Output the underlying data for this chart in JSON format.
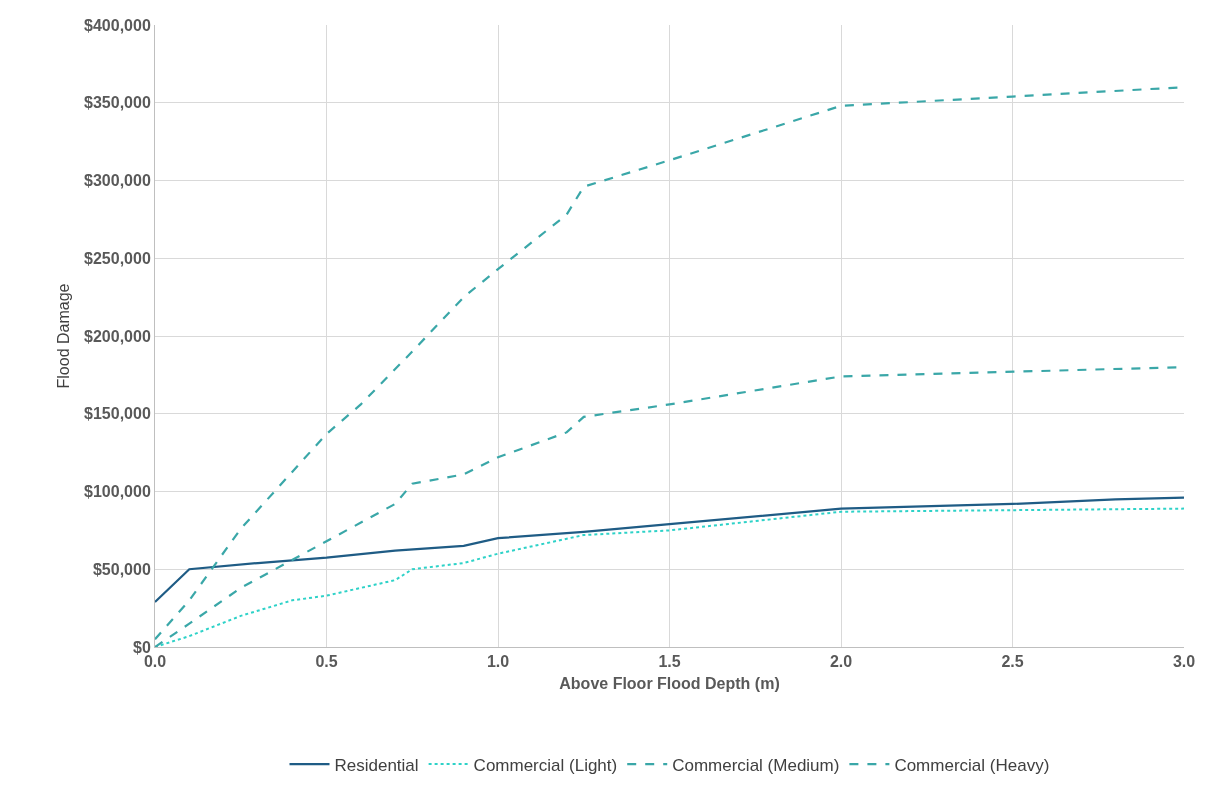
{
  "chart_data": {
    "type": "line",
    "xlabel": "Above Floor Flood Depth (m)",
    "ylabel": "Flood Damage",
    "xlim": [
      0,
      3
    ],
    "xticks": [
      {
        "value": 0,
        "label": "0.0"
      },
      0.5,
      {
        "value": 1,
        "label": "1.0"
      },
      1.5,
      {
        "value": 2,
        "label": "2.0"
      },
      2.5,
      {
        "value": 3,
        "label": "3.0"
      }
    ],
    "ylim": [
      0,
      400000
    ],
    "yticks": [
      {
        "value": 0,
        "label": "$0"
      },
      {
        "value": 50000,
        "label": "$50,000"
      },
      {
        "value": 100000,
        "label": "$100,000"
      },
      {
        "value": 150000,
        "label": "$150,000"
      },
      {
        "value": 200000,
        "label": "$200,000"
      },
      {
        "value": 250000,
        "label": "$250,000"
      },
      {
        "value": 300000,
        "label": "$300,000"
      },
      {
        "value": 350000,
        "label": "$350,000"
      },
      {
        "value": 400000,
        "label": "$400,000"
      }
    ],
    "grid": true,
    "legend": "bottom",
    "marker": "none",
    "series": [
      {
        "name": "Residential",
        "color": "#1f5c85",
        "line_style": "solid",
        "x": [
          0,
          0.1,
          0.3,
          0.5,
          0.7,
          0.9,
          1.0,
          1.25,
          1.5,
          2.0,
          2.5,
          2.8,
          3.0
        ],
        "values": [
          29000,
          50000,
          54000,
          57500,
          62000,
          65000,
          70000,
          74000,
          79000,
          89000,
          92000,
          95000,
          96000
        ]
      },
      {
        "name": "Commercial (Light)",
        "color": "#2ed2c8",
        "line_style": "dotted",
        "x": [
          0,
          0.1,
          0.25,
          0.4,
          0.5,
          0.7,
          0.75,
          0.9,
          1.0,
          1.25,
          1.5,
          2.0,
          2.5,
          3.0
        ],
        "values": [
          0,
          7000,
          20000,
          30000,
          33000,
          43000,
          50000,
          54000,
          60000,
          72000,
          75000,
          87000,
          88000,
          89000
        ]
      },
      {
        "name": "Commercial (Medium)",
        "color": "#3aa7a8",
        "line_style": "dashed",
        "x": [
          0,
          0.1,
          0.25,
          0.5,
          0.7,
          0.75,
          0.9,
          1.0,
          1.2,
          1.25,
          1.5,
          2.0,
          3.0
        ],
        "values": [
          0,
          15000,
          38000,
          68000,
          92000,
          105000,
          111000,
          122000,
          138000,
          148000,
          156000,
          174000,
          180000
        ]
      },
      {
        "name": "Commercial (Heavy)",
        "color": "#3aa7a8",
        "line_style": "dashed",
        "x": [
          0,
          0.1,
          0.25,
          0.5,
          0.6,
          0.75,
          0.9,
          1.0,
          1.2,
          1.25,
          1.5,
          2.0,
          2.5,
          3.0
        ],
        "values": [
          5000,
          30000,
          76000,
          137000,
          156000,
          190000,
          225000,
          243000,
          278000,
          296000,
          313000,
          348000,
          354000,
          360000
        ]
      }
    ]
  }
}
